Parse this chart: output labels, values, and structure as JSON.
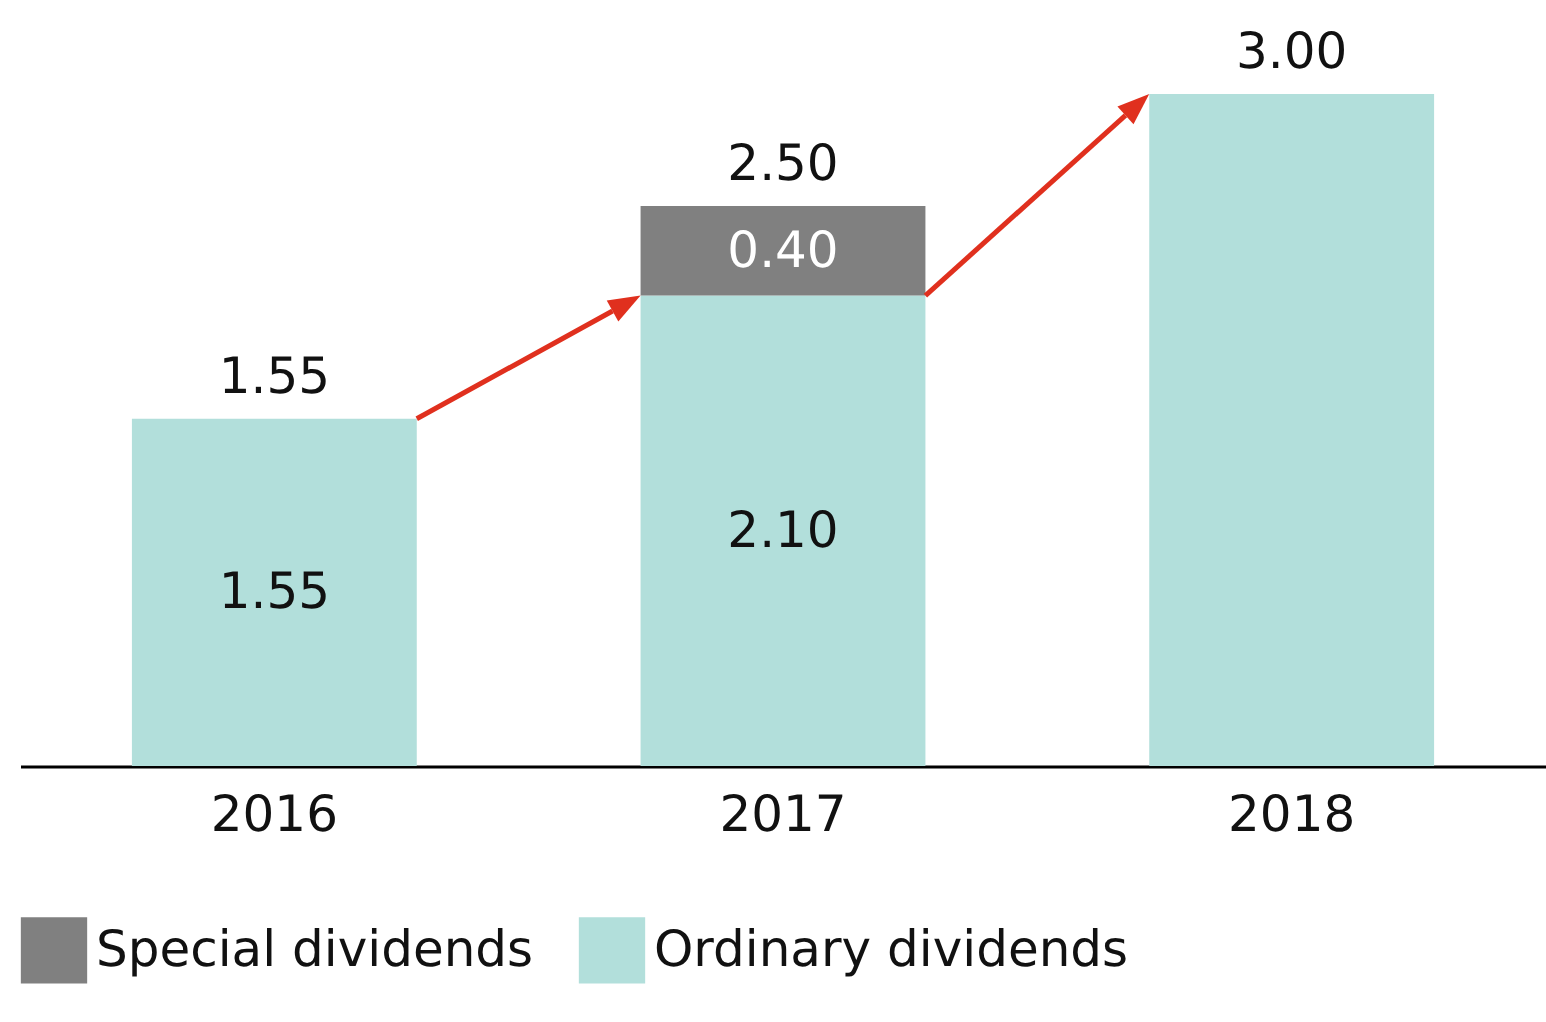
{
  "chart_data": {
    "type": "bar",
    "stacked": true,
    "categories": [
      "2016",
      "2017",
      "2018"
    ],
    "series": [
      {
        "name": "Ordinary dividends",
        "color": "#b2dfdb",
        "values": [
          1.55,
          2.1,
          3.0
        ],
        "value_labels": [
          "1.55",
          "2.10",
          null
        ]
      },
      {
        "name": "Special dividends",
        "color": "#808080",
        "values": [
          null,
          0.4,
          null
        ],
        "value_labels": [
          null,
          "0.40",
          null
        ]
      }
    ],
    "totals": [
      "1.55",
      "2.50",
      "3.00"
    ],
    "legend": "bottom",
    "grid": false
  }
}
